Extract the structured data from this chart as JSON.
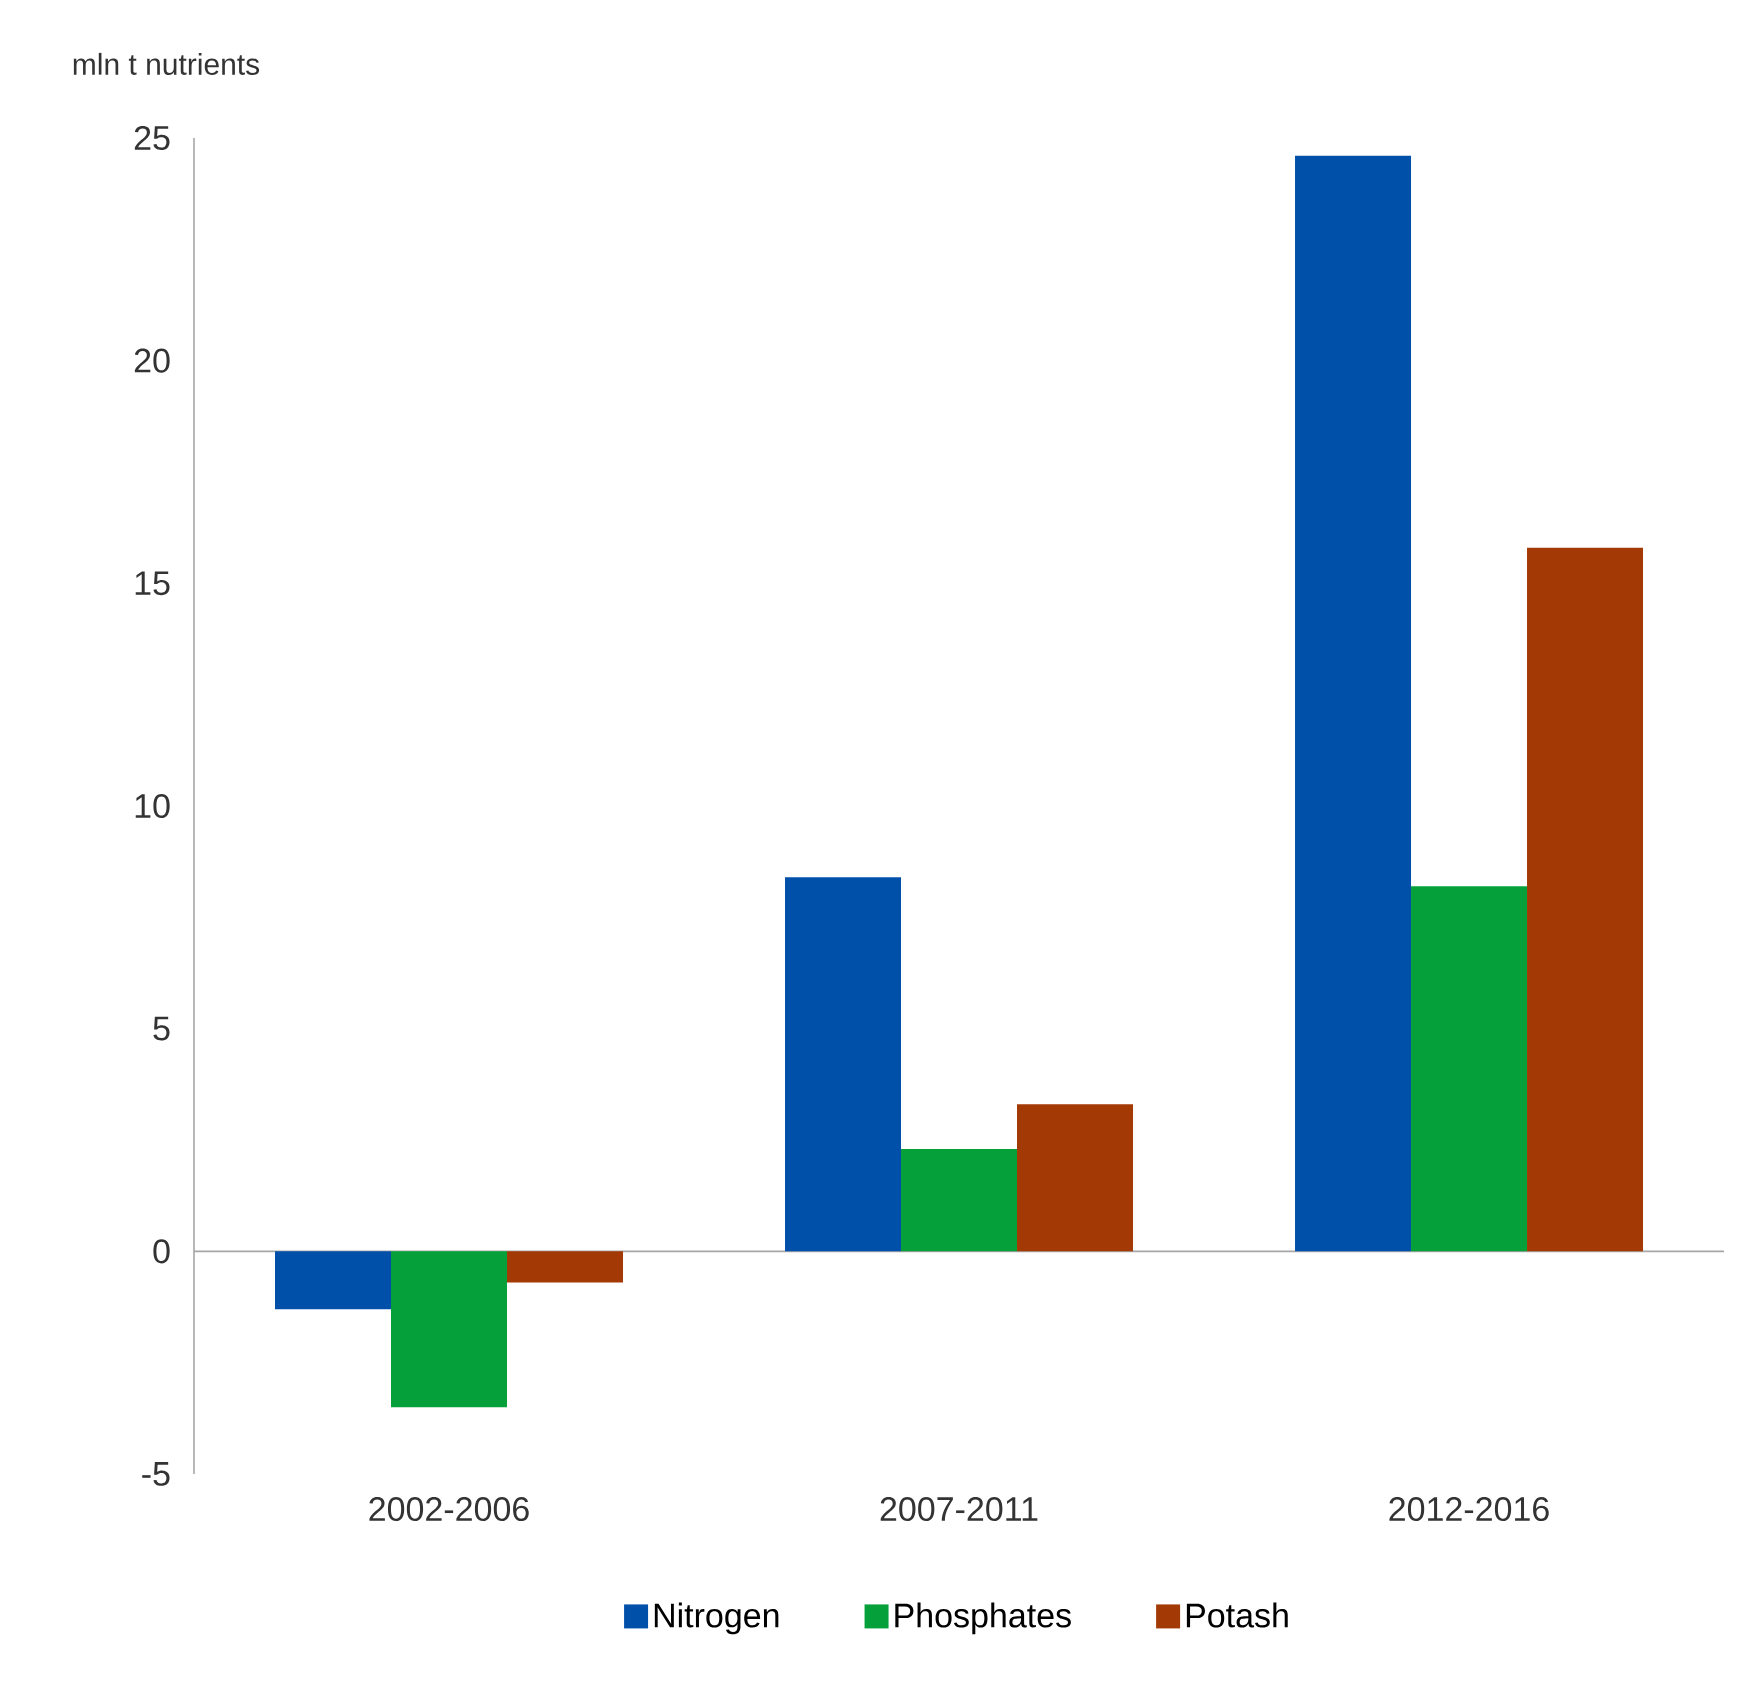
{
  "chart_data": {
    "type": "bar",
    "ylabel": "mln t nutrients",
    "categories": [
      "2002-2006",
      "2007-2011",
      "2012-2016"
    ],
    "series": [
      {
        "name": "Nitrogen",
        "color": "#0050aa",
        "values": [
          -1.3,
          8.4,
          24.6
        ]
      },
      {
        "name": "Phosphates",
        "color": "#06a03a",
        "values": [
          -3.5,
          2.3,
          8.2
        ]
      },
      {
        "name": "Potash",
        "color": "#a33a06",
        "values": [
          -0.7,
          3.3,
          15.8
        ]
      }
    ],
    "ylim": [
      -5,
      25
    ],
    "yticks": [
      -5,
      0,
      5,
      10,
      15,
      20,
      25
    ],
    "legend": "bottom"
  }
}
